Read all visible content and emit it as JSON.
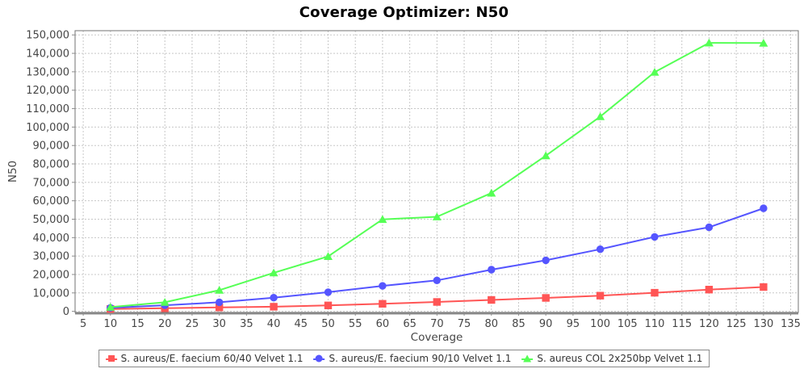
{
  "title": "Coverage Optimizer: N50",
  "chart_data": {
    "type": "line",
    "title": "Coverage Optimizer: N50",
    "xlabel": "Coverage",
    "ylabel": "N50",
    "xlim": [
      3.5,
      136.4
    ],
    "ylim": [
      -600,
      152300
    ],
    "x_ticks": [
      5,
      10,
      15,
      20,
      25,
      30,
      35,
      40,
      45,
      50,
      55,
      60,
      65,
      70,
      75,
      80,
      85,
      90,
      95,
      100,
      105,
      110,
      115,
      120,
      125,
      130,
      135
    ],
    "y_ticks": [
      0,
      10000,
      20000,
      30000,
      40000,
      50000,
      60000,
      70000,
      80000,
      90000,
      100000,
      110000,
      120000,
      130000,
      140000,
      150000
    ],
    "grid": true,
    "legend_position": "bottom",
    "x": [
      10,
      20,
      30,
      40,
      50,
      60,
      70,
      80,
      90,
      100,
      110,
      120,
      130
    ],
    "series": [
      {
        "name": "S. aureus/E. faecium 60/40 Velvet 1.1",
        "color": "#FF5555",
        "marker": "square",
        "values": [
          1300,
          1700,
          2100,
          2500,
          3200,
          4100,
          5100,
          6200,
          7300,
          8500,
          10100,
          11800,
          13200
        ]
      },
      {
        "name": "S. aureus/E. faecium 90/10 Velvet 1.1",
        "color": "#5555FF",
        "marker": "circle",
        "values": [
          1900,
          3300,
          4900,
          7400,
          10400,
          13800,
          16800,
          22600,
          27700,
          33700,
          40400,
          45600,
          55900
        ]
      },
      {
        "name": "S. aureus COL 2x250bp Velvet 1.1",
        "color": "#55FF55",
        "marker": "triangle",
        "values": [
          2300,
          4900,
          11500,
          20900,
          29800,
          49900,
          51300,
          64200,
          84500,
          105700,
          129800,
          145700,
          145600
        ]
      }
    ],
    "colors": {
      "gridline": "#C8C8C8",
      "plot_border": "#737373",
      "tick_label": "#464646",
      "axis_label": "#464646",
      "background": "#FFFFFF"
    }
  }
}
